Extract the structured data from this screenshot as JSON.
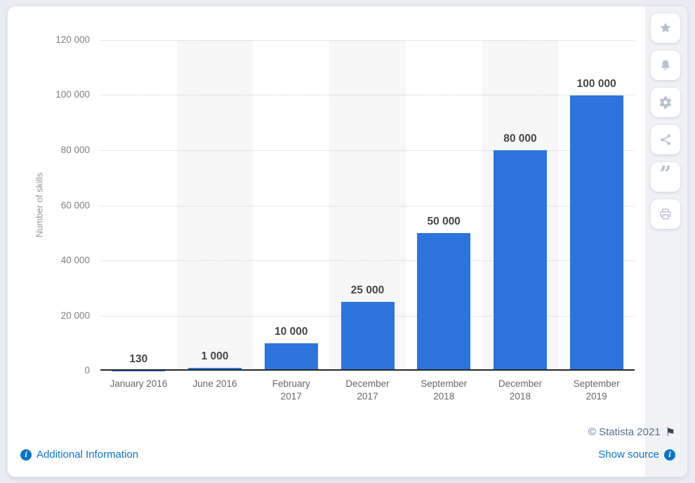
{
  "chart_data": {
    "type": "bar",
    "title": "",
    "xlabel": "",
    "ylabel": "Number of skills",
    "categories": [
      "January 2016",
      "June 2016",
      "February\n2017",
      "December\n2017",
      "September\n2018",
      "December\n2018",
      "September\n2019"
    ],
    "values": [
      130,
      1000,
      10000,
      25000,
      50000,
      80000,
      100000
    ],
    "value_labels": [
      "130",
      "1 000",
      "10 000",
      "25 000",
      "50 000",
      "80 000",
      "100 000"
    ],
    "ylim": [
      0,
      120000
    ],
    "ytick_values": [
      0,
      20000,
      40000,
      60000,
      80000,
      100000,
      120000
    ],
    "ytick_labels": [
      "0",
      "20 000",
      "40 000",
      "60 000",
      "80 000",
      "100 000",
      "120 000"
    ],
    "grid": "horizontal-dotted",
    "legend": "none",
    "bar_color": "#2d74dc",
    "shaded_column_indexes": [
      1,
      3,
      5
    ],
    "shaded_band_color": "#f7f7f7"
  },
  "toolbar": {
    "icons": [
      {
        "name": "favorite-star"
      },
      {
        "name": "notification-bell"
      },
      {
        "name": "settings-gear"
      },
      {
        "name": "share"
      },
      {
        "name": "citation-quote"
      },
      {
        "name": "print"
      }
    ]
  },
  "footer": {
    "copyright": "© Statista 2021",
    "additional_information": "Additional Information",
    "show_source": "Show source"
  },
  "colors": {
    "bar_blue": "#2d74dc",
    "link_blue": "#0d74c4",
    "copyright_gray_blue": "#54708c",
    "icon_gray": "#b7c0cd"
  }
}
